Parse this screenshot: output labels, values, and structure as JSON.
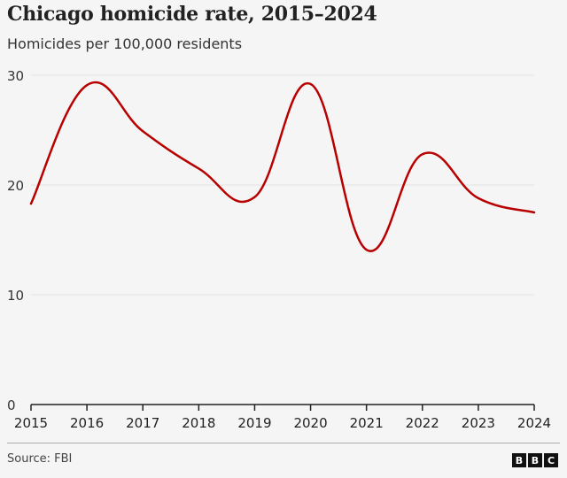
{
  "chart_data": {
    "type": "line",
    "title": "Chicago homicide rate, 2015–2024",
    "subtitle": "Homicides per 100,000 residents",
    "xlabel": "",
    "ylabel": "",
    "x": [
      "2015",
      "2016",
      "2017",
      "2018",
      "2019",
      "2020",
      "2021",
      "2022",
      "2023",
      "2024"
    ],
    "series": [
      {
        "name": "Homicide rate",
        "color": "#b80000",
        "values": [
          18.3,
          29.1,
          24.9,
          21.5,
          18.9,
          29.2,
          14.1,
          22.8,
          18.8,
          17.5
        ]
      }
    ],
    "ylim": [
      0,
      30
    ],
    "yticks": [
      0,
      10,
      20,
      30
    ],
    "grid": true,
    "source": "Source: FBI",
    "logo": [
      "B",
      "B",
      "C"
    ]
  }
}
